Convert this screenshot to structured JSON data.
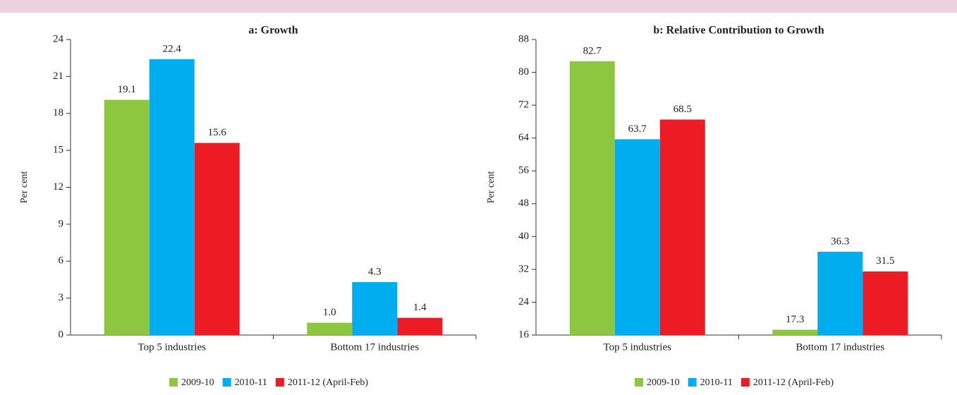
{
  "chart_data": [
    {
      "type": "bar",
      "title": "a: Growth",
      "ylabel": "Per cent",
      "categories": [
        "Top 5 industries",
        "Bottom 17 industries"
      ],
      "series": [
        {
          "name": "2009-10",
          "color": "#8dc63f",
          "values": [
            19.1,
            1.0
          ],
          "value_labels": [
            "19.1",
            "1.0"
          ]
        },
        {
          "name": "2010-11",
          "color": "#00aeef",
          "values": [
            22.4,
            4.3
          ]
        },
        {
          "name": "2011-12 (April-Feb)",
          "color": "#ed1c24",
          "values": [
            15.6,
            1.4
          ]
        }
      ],
      "ylim": [
        0,
        24
      ],
      "yticks": [
        0,
        3,
        6,
        9,
        12,
        15,
        18,
        21,
        24
      ]
    },
    {
      "type": "bar",
      "title": "b: Relative Contribution to Growth",
      "ylabel": "Per cent",
      "categories": [
        "Top 5 industries",
        "Bottom 17 industries"
      ],
      "series": [
        {
          "name": "2009-10",
          "color": "#8dc63f",
          "values": [
            82.7,
            17.3
          ]
        },
        {
          "name": "2010-11",
          "color": "#00aeef",
          "values": [
            63.7,
            36.3
          ]
        },
        {
          "name": "2011-12 (April-Feb)",
          "color": "#ed1c24",
          "values": [
            68.5,
            31.5
          ]
        }
      ],
      "ylim": [
        16,
        88
      ],
      "yticks": [
        16,
        24,
        32,
        40,
        48,
        56,
        64,
        72,
        80,
        88
      ]
    }
  ]
}
